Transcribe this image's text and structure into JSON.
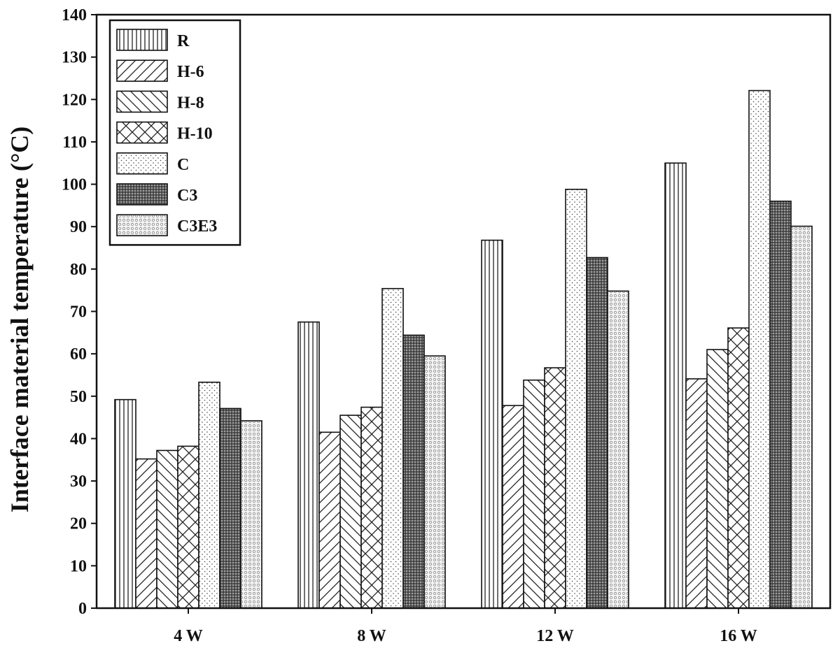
{
  "chart_data": {
    "type": "bar",
    "categories": [
      "4 W",
      "8 W",
      "12 W",
      "16 W"
    ],
    "series": [
      {
        "name": "R",
        "values": [
          49.2,
          67.5,
          86.8,
          105.0
        ],
        "pattern": "vertical-lines"
      },
      {
        "name": "H-6",
        "values": [
          35.2,
          41.5,
          47.8,
          54.1
        ],
        "pattern": "forward-diagonal"
      },
      {
        "name": "H-8",
        "values": [
          37.2,
          45.5,
          53.8,
          61.0
        ],
        "pattern": "backward-diagonal"
      },
      {
        "name": "H-10",
        "values": [
          38.2,
          47.4,
          56.7,
          66.1
        ],
        "pattern": "cross-hatch"
      },
      {
        "name": "C",
        "values": [
          53.3,
          75.4,
          98.8,
          122.1
        ],
        "pattern": "sparse-dots"
      },
      {
        "name": "C3",
        "values": [
          47.1,
          64.4,
          82.7,
          96.0
        ],
        "pattern": "dense-dark-dots"
      },
      {
        "name": "C3E3",
        "values": [
          44.2,
          59.5,
          74.8,
          90.1
        ],
        "pattern": "light-circles"
      }
    ],
    "xlabel": "",
    "ylabel": "Interface material temperature (°C)",
    "ylim": [
      0,
      140
    ],
    "yticks": [
      0,
      10,
      20,
      30,
      40,
      50,
      60,
      70,
      80,
      90,
      100,
      110,
      120,
      130,
      140
    ],
    "grid": false,
    "legend_position": "top-left"
  }
}
